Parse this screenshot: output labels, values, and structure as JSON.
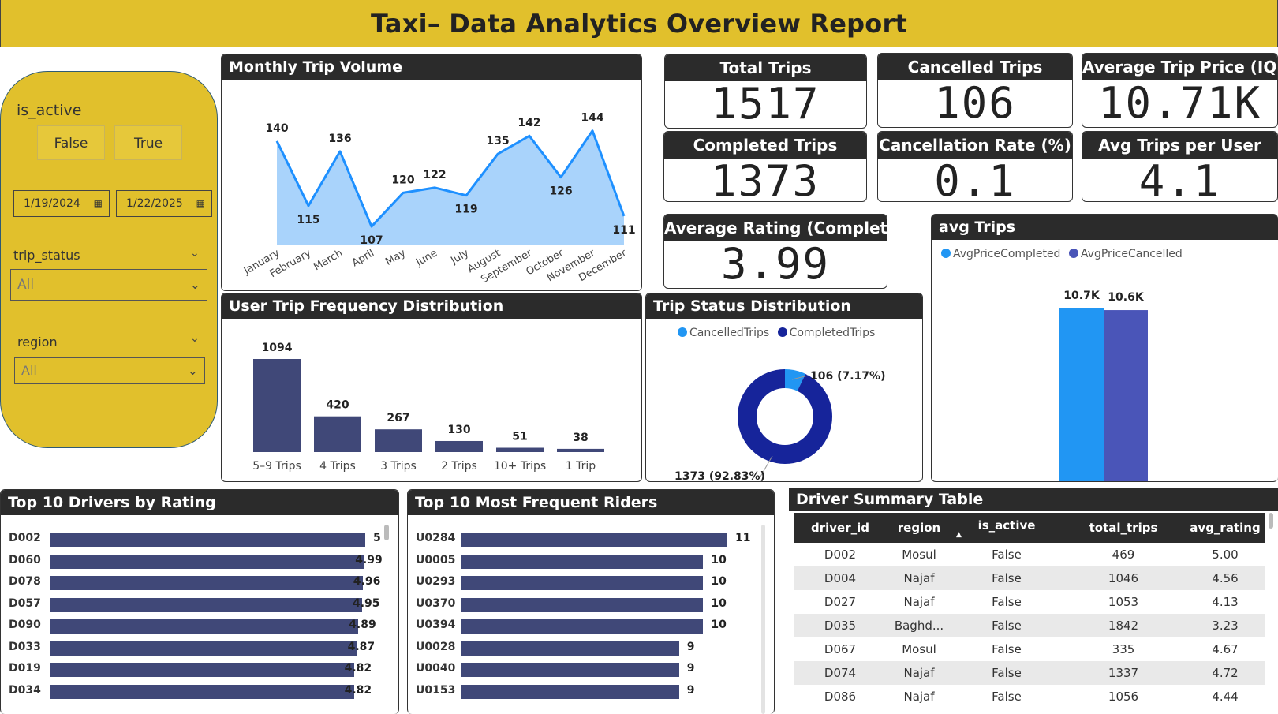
{
  "title": "Taxi– Data Analytics Overview Report",
  "slicer": {
    "is_active_label": "is_active",
    "is_active_options": [
      "False",
      "True"
    ],
    "date_start": "1/19/2024",
    "date_end": "1/22/2025",
    "trip_status_label": "trip_status",
    "trip_status_value": "All",
    "region_label": "region",
    "region_value": "All"
  },
  "kpis": {
    "total_trips": {
      "label": "Total Trips",
      "value": "1517"
    },
    "cancelled_trips": {
      "label": "Cancelled Trips",
      "value": "106"
    },
    "avg_trip_price": {
      "label": "Average Trip Price (IQD)",
      "value": "10.71K"
    },
    "completed_trips": {
      "label": "Completed Trips",
      "value": "1373"
    },
    "cancellation_rate": {
      "label": "Cancellation Rate (%)",
      "value": "0.1"
    },
    "avg_trips_per_user": {
      "label": "Avg Trips per User",
      "value": "4.1"
    },
    "avg_rating": {
      "label": "Average Rating (Completed)",
      "value": "3.99"
    }
  },
  "monthly": {
    "title": "Monthly Trip Volume",
    "color_line": "#1e90ff",
    "color_fill": "#a9d3fb",
    "labels": [
      "140",
      "115",
      "136",
      "107",
      "120",
      "122",
      "119",
      "135",
      "142",
      "126",
      "144",
      "111"
    ]
  },
  "freq": {
    "title": "User Trip Frequency Distribution",
    "color": "#404878",
    "labels": [
      "1094",
      "420",
      "267",
      "130",
      "51",
      "38"
    ]
  },
  "status": {
    "title": "Trip Status Distribution",
    "legend": [
      "CancelledTrips",
      "CompletedTrips"
    ],
    "colors": [
      "#2196f3",
      "#16249a"
    ],
    "label_cancelled": "106 (7.17%)",
    "label_completed": "1373 (92.83%)"
  },
  "avgtrips": {
    "title": "avg Trips",
    "legend": [
      "AvgPriceCompleted",
      "AvgPriceCancelled"
    ],
    "colors": [
      "#2196f3",
      "#4a55b8"
    ],
    "labels": [
      "10.7K",
      "10.6K"
    ]
  },
  "drivers": {
    "title": "Top 10 Drivers by Rating",
    "ids": [
      "D002",
      "D060",
      "D078",
      "D057",
      "D090",
      "D033",
      "D019",
      "D034"
    ],
    "labels": [
      "5",
      "4.99",
      "4.96",
      "4.95",
      "4.89",
      "4.87",
      "4.82",
      "4.82"
    ]
  },
  "riders": {
    "title": "Top 10 Most Frequent Riders",
    "ids": [
      "U0284",
      "U0005",
      "U0293",
      "U0370",
      "U0394",
      "U0028",
      "U0040",
      "U0153"
    ],
    "labels": [
      "11",
      "10",
      "10",
      "10",
      "10",
      "9",
      "9",
      "9"
    ]
  },
  "table": {
    "title": "Driver Summary Table",
    "headers": [
      "driver_id",
      "region",
      "is_active",
      "total_trips",
      "avg_rating"
    ],
    "rows": [
      [
        "D002",
        "Mosul",
        "False",
        "469",
        "5.00"
      ],
      [
        "D004",
        "Najaf",
        "False",
        "1046",
        "4.56"
      ],
      [
        "D027",
        "Najaf",
        "False",
        "1053",
        "4.13"
      ],
      [
        "D035",
        "Baghd...",
        "False",
        "1842",
        "3.23"
      ],
      [
        "D067",
        "Mosul",
        "False",
        "335",
        "4.67"
      ],
      [
        "D074",
        "Najaf",
        "False",
        "1337",
        "4.72"
      ],
      [
        "D086",
        "Najaf",
        "False",
        "1056",
        "4.44"
      ]
    ]
  },
  "chart_data": [
    {
      "type": "area",
      "title": "Monthly Trip Volume",
      "categories": [
        "January",
        "February",
        "March",
        "April",
        "May",
        "June",
        "July",
        "August",
        "September",
        "October",
        "November",
        "December"
      ],
      "values": [
        140,
        115,
        136,
        107,
        120,
        122,
        119,
        135,
        142,
        126,
        144,
        111
      ]
    },
    {
      "type": "bar",
      "title": "User Trip Frequency Distribution",
      "categories": [
        "5–9 Trips",
        "4 Trips",
        "3 Trips",
        "2 Trips",
        "10+ Trips",
        "1 Trip"
      ],
      "values": [
        1094,
        420,
        267,
        130,
        51,
        38
      ]
    },
    {
      "type": "pie",
      "title": "Trip Status Distribution",
      "categories": [
        "CancelledTrips",
        "CompletedTrips"
      ],
      "values": [
        106,
        1373
      ]
    },
    {
      "type": "bar",
      "title": "avg Trips",
      "series": [
        {
          "name": "AvgPriceCompleted",
          "values": [
            10700
          ]
        },
        {
          "name": "AvgPriceCancelled",
          "values": [
            10600
          ]
        }
      ]
    },
    {
      "type": "bar",
      "title": "Top 10 Drivers by Rating",
      "categories": [
        "D002",
        "D060",
        "D078",
        "D057",
        "D090",
        "D033",
        "D019",
        "D034"
      ],
      "values": [
        5,
        4.99,
        4.96,
        4.95,
        4.89,
        4.87,
        4.82,
        4.82
      ]
    },
    {
      "type": "bar",
      "title": "Top 10 Most Frequent Riders",
      "categories": [
        "U0284",
        "U0005",
        "U0293",
        "U0370",
        "U0394",
        "U0028",
        "U0040",
        "U0153"
      ],
      "values": [
        11,
        10,
        10,
        10,
        10,
        9,
        9,
        9
      ]
    }
  ]
}
